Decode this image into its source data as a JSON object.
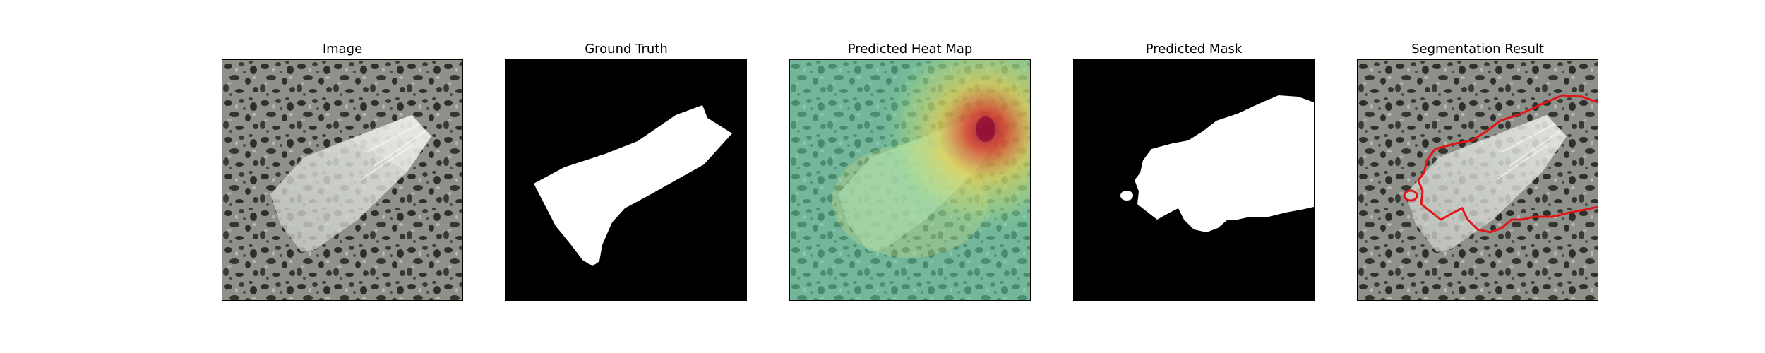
{
  "figure": {
    "panels": [
      {
        "title": "Image"
      },
      {
        "title": "Ground Truth"
      },
      {
        "title": "Predicted Heat Map"
      },
      {
        "title": "Predicted Mask"
      },
      {
        "title": "Segmentation Result"
      }
    ]
  },
  "colors": {
    "background": "#ffffff",
    "granite": "#8d918a",
    "speckle": "#2e2f2c",
    "mask": "#ffffff",
    "mask_background": "#000000",
    "heat_base": "#5fd6a6",
    "heat_peak": "#c8102e",
    "contour": "#e0161a"
  }
}
